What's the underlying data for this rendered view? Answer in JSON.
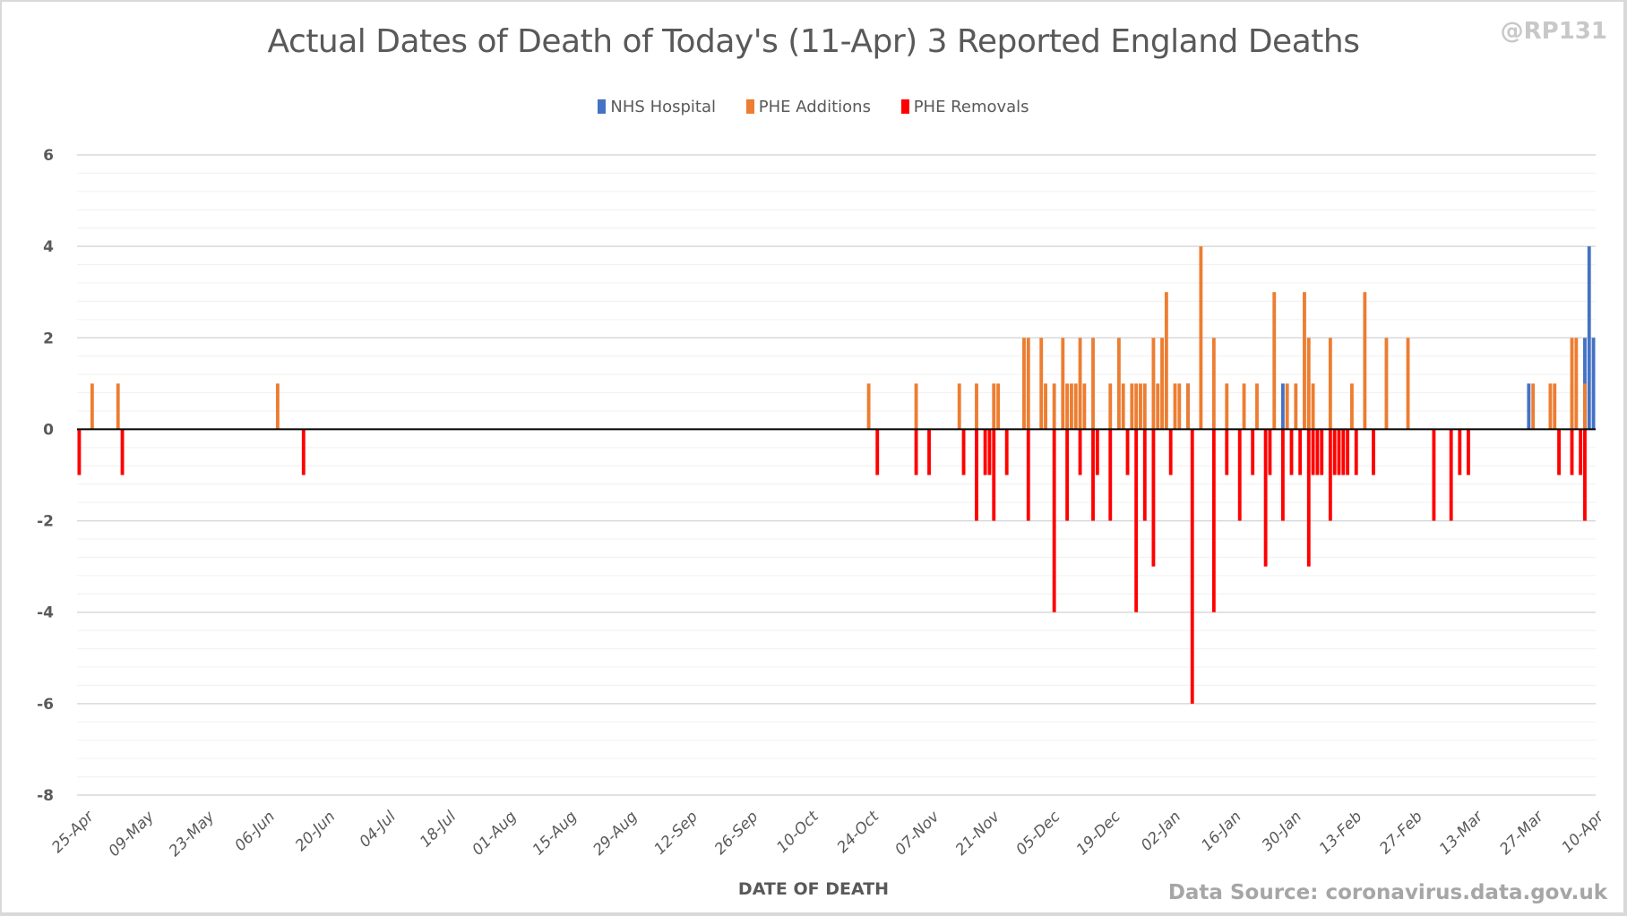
{
  "chart_data": {
    "type": "bar",
    "title": "Actual Dates of Death of Today's (11-Apr) 3 Reported England Deaths",
    "watermark": "@RP131",
    "xlabel": "DATE OF DEATH",
    "ylabel": "",
    "source": "Data Source: coronavirus.data.gov.uk",
    "ylim": [
      -8,
      6
    ],
    "yticks": [
      6,
      4,
      2,
      0,
      -2,
      -4,
      -6,
      -8
    ],
    "minor_grid_step": 0.4,
    "grid": true,
    "legend_position": "top-center",
    "x_start": "25-Apr",
    "x_days": 352,
    "xtick_labels": [
      "25-Apr",
      "09-May",
      "23-May",
      "06-Jun",
      "20-Jun",
      "04-Jul",
      "18-Jul",
      "01-Aug",
      "15-Aug",
      "29-Aug",
      "12-Sep",
      "26-Sep",
      "10-Oct",
      "24-Oct",
      "07-Nov",
      "21-Nov",
      "05-Dec",
      "19-Dec",
      "02-Jan",
      "16-Jan",
      "30-Jan",
      "13-Feb",
      "27-Feb",
      "13-Mar",
      "27-Mar",
      "10-Apr"
    ],
    "xtick_step_days": 14,
    "series": [
      {
        "name": "NHS Hospital",
        "color": "#4472c4",
        "points": [
          [
            257,
            1
          ],
          [
            279,
            1
          ],
          [
            336,
            1
          ],
          [
            349,
            2
          ],
          [
            350,
            4
          ],
          [
            351,
            2
          ]
        ]
      },
      {
        "name": "PHE Additions",
        "color": "#ed7d31",
        "points": [
          [
            3,
            1
          ],
          [
            9,
            1
          ],
          [
            46,
            1
          ],
          [
            183,
            1
          ],
          [
            194,
            1
          ],
          [
            204,
            1
          ],
          [
            208,
            1
          ],
          [
            212,
            1
          ],
          [
            213,
            1
          ],
          [
            219,
            2
          ],
          [
            220,
            2
          ],
          [
            223,
            2
          ],
          [
            224,
            1
          ],
          [
            226,
            1
          ],
          [
            228,
            2
          ],
          [
            229,
            1
          ],
          [
            230,
            1
          ],
          [
            231,
            1
          ],
          [
            232,
            2
          ],
          [
            233,
            1
          ],
          [
            235,
            2
          ],
          [
            239,
            1
          ],
          [
            241,
            2
          ],
          [
            242,
            1
          ],
          [
            244,
            1
          ],
          [
            245,
            1
          ],
          [
            246,
            1
          ],
          [
            247,
            1
          ],
          [
            249,
            2
          ],
          [
            250,
            1
          ],
          [
            251,
            2
          ],
          [
            252,
            3
          ],
          [
            254,
            1
          ],
          [
            255,
            1
          ],
          [
            257,
            1
          ],
          [
            260,
            4
          ],
          [
            263,
            2
          ],
          [
            266,
            1
          ],
          [
            270,
            1
          ],
          [
            273,
            1
          ],
          [
            277,
            3
          ],
          [
            280,
            1
          ],
          [
            282,
            1
          ],
          [
            284,
            3
          ],
          [
            285,
            2
          ],
          [
            286,
            1
          ],
          [
            290,
            2
          ],
          [
            295,
            1
          ],
          [
            298,
            3
          ],
          [
            303,
            2
          ],
          [
            308,
            2
          ],
          [
            337,
            1
          ],
          [
            341,
            1
          ],
          [
            342,
            1
          ],
          [
            346,
            1
          ],
          [
            346,
            2
          ],
          [
            347,
            2
          ],
          [
            349,
            1
          ]
        ]
      },
      {
        "name": "PHE Removals",
        "color": "#ff0000",
        "points": [
          [
            0,
            -1
          ],
          [
            10,
            -1
          ],
          [
            52,
            -1
          ],
          [
            185,
            -1
          ],
          [
            194,
            -1
          ],
          [
            197,
            -1
          ],
          [
            205,
            -1
          ],
          [
            208,
            -2
          ],
          [
            210,
            -1
          ],
          [
            211,
            -1
          ],
          [
            212,
            -2
          ],
          [
            215,
            -1
          ],
          [
            220,
            -2
          ],
          [
            226,
            -4
          ],
          [
            229,
            -2
          ],
          [
            232,
            -1
          ],
          [
            235,
            -2
          ],
          [
            236,
            -1
          ],
          [
            239,
            -2
          ],
          [
            243,
            -1
          ],
          [
            245,
            -4
          ],
          [
            247,
            -2
          ],
          [
            249,
            -3
          ],
          [
            253,
            -1
          ],
          [
            258,
            -6
          ],
          [
            263,
            -4
          ],
          [
            266,
            -1
          ],
          [
            269,
            -2
          ],
          [
            272,
            -1
          ],
          [
            275,
            -3
          ],
          [
            276,
            -1
          ],
          [
            279,
            -2
          ],
          [
            281,
            -1
          ],
          [
            283,
            -1
          ],
          [
            285,
            -3
          ],
          [
            286,
            -1
          ],
          [
            287,
            -1
          ],
          [
            288,
            -1
          ],
          [
            290,
            -2
          ],
          [
            291,
            -1
          ],
          [
            292,
            -1
          ],
          [
            293,
            -1
          ],
          [
            294,
            -1
          ],
          [
            296,
            -1
          ],
          [
            300,
            -1
          ],
          [
            314,
            -2
          ],
          [
            318,
            -2
          ],
          [
            320,
            -1
          ],
          [
            322,
            -1
          ],
          [
            343,
            -1
          ],
          [
            346,
            -1
          ],
          [
            348,
            -1
          ],
          [
            349,
            -2
          ]
        ]
      }
    ]
  }
}
